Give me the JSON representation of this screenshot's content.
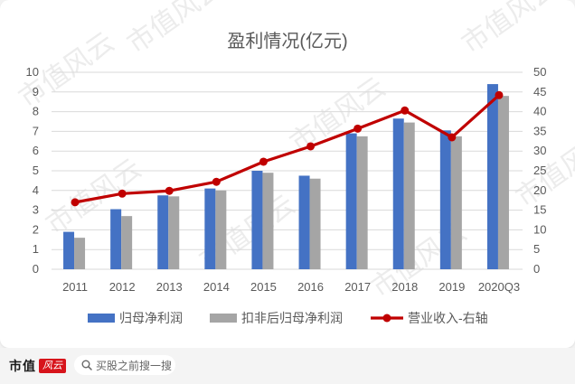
{
  "chart_data": {
    "type": "bar+line",
    "title": "盈利情况(亿元)",
    "categories": [
      "2011",
      "2012",
      "2013",
      "2014",
      "2015",
      "2016",
      "2017",
      "2018",
      "2019",
      "2020Q3"
    ],
    "series": [
      {
        "name": "归母净利润",
        "type": "bar",
        "axis": "left",
        "color": "#4472c4",
        "values": [
          1.9,
          3.05,
          3.75,
          4.1,
          5.0,
          4.75,
          6.9,
          7.65,
          7.05,
          9.4
        ]
      },
      {
        "name": "扣非后归母净利润",
        "type": "bar",
        "axis": "left",
        "color": "#a5a5a5",
        "values": [
          1.6,
          2.7,
          3.7,
          4.0,
          4.9,
          4.6,
          6.75,
          7.45,
          6.75,
          8.8
        ]
      },
      {
        "name": "营业收入-右轴",
        "type": "line",
        "axis": "right",
        "color": "#c00000",
        "values": [
          17.0,
          19.2,
          19.9,
          22.2,
          27.3,
          31.2,
          35.7,
          40.3,
          33.5,
          44.2
        ]
      }
    ],
    "y_left": {
      "min": 0,
      "max": 10,
      "ticks": [
        0,
        1,
        2,
        3,
        4,
        5,
        6,
        7,
        8,
        9,
        10
      ]
    },
    "y_right": {
      "min": 0,
      "max": 50,
      "ticks": [
        0,
        5,
        10,
        15,
        20,
        25,
        30,
        35,
        40,
        45,
        50
      ]
    },
    "grid": "horizontal",
    "legend_position": "bottom"
  },
  "watermark": "市值风云",
  "footer": {
    "logo_text": "市值",
    "logo_badge": "风云",
    "search_placeholder": "买股之前搜一搜"
  },
  "colors": {
    "grid": "#d9d9d9",
    "axis_text": "#595959",
    "title_text": "#595959"
  }
}
